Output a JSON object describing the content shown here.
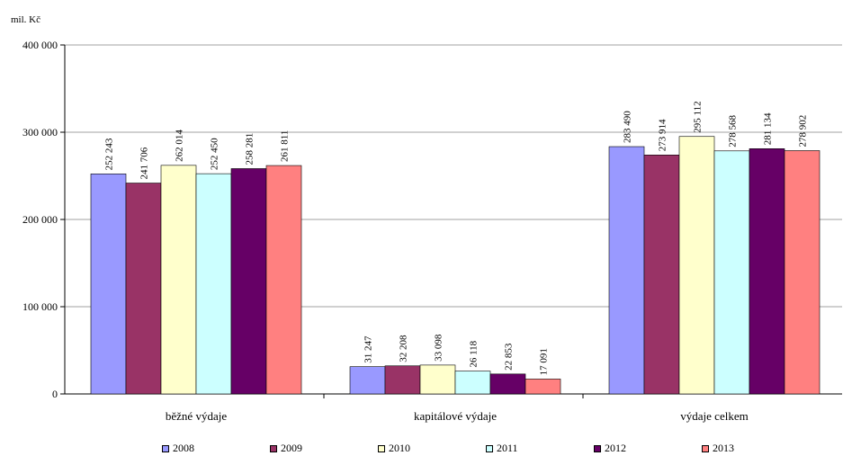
{
  "chart_data": {
    "type": "bar",
    "unit_label": "mil. Kč",
    "categories": [
      "běžné výdaje",
      "kapitálové výdaje",
      "výdaje celkem"
    ],
    "ylim": [
      0,
      400000
    ],
    "yticks": [
      "0",
      "100 000",
      "200 000",
      "300 000",
      "400 000"
    ],
    "ytick_values": [
      0,
      100000,
      200000,
      300000,
      400000
    ],
    "grid": "horizontal",
    "legend_position": "bottom",
    "series": [
      {
        "name": "2008",
        "color": "#9999ff",
        "values": [
          252243,
          31247,
          283490
        ],
        "labels": [
          "252 243",
          "31 247",
          "283 490"
        ]
      },
      {
        "name": "2009",
        "color": "#993366",
        "values": [
          241706,
          32208,
          273914
        ],
        "labels": [
          "241 706",
          "32 208",
          "273 914"
        ]
      },
      {
        "name": "2010",
        "color": "#ffffcc",
        "values": [
          262014,
          33098,
          295112
        ],
        "labels": [
          "262 014",
          "33 098",
          "295 112"
        ]
      },
      {
        "name": "2011",
        "color": "#ccffff",
        "values": [
          252450,
          26118,
          278568
        ],
        "labels": [
          "252 450",
          "26 118",
          "278 568"
        ]
      },
      {
        "name": "2012",
        "color": "#660066",
        "values": [
          258281,
          22853,
          281134
        ],
        "labels": [
          "258 281",
          "22 853",
          "281 134"
        ]
      },
      {
        "name": "2013",
        "color": "#ff8080",
        "values": [
          261811,
          17091,
          278902
        ],
        "labels": [
          "261 811",
          "17 091",
          "278 902"
        ]
      }
    ]
  }
}
